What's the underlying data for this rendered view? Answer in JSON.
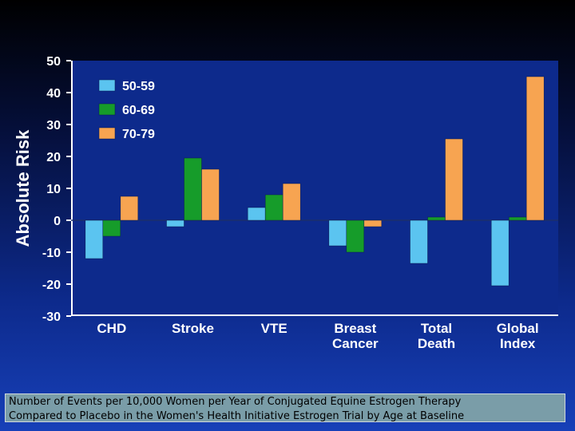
{
  "chart_data": {
    "type": "bar",
    "categories": [
      "CHD",
      "Stroke",
      "VTE",
      "Breast\nCancer",
      "Total\nDeath",
      "Global\nIndex"
    ],
    "series": [
      {
        "name": "50-59",
        "color": "#5bc4f0",
        "values": [
          -12,
          -2,
          4,
          -8,
          -13.5,
          -20.5
        ]
      },
      {
        "name": "60-69",
        "color": "#169c2a",
        "values": [
          -5,
          19.5,
          8,
          -10,
          1,
          1
        ]
      },
      {
        "name": "70-79",
        "color": "#f7a451",
        "values": [
          7.5,
          16,
          11.5,
          -2,
          25.5,
          45
        ]
      }
    ],
    "ylabel": "Absolute Risk",
    "ylim": [
      -30,
      50
    ],
    "yticks": [
      "50",
      "40",
      "30",
      "20",
      "10",
      "0",
      "-10",
      "-20",
      "-30"
    ],
    "grid": false,
    "legend": "top-left",
    "axis_color": "#ffffff",
    "background_color": "#0d2a8c"
  },
  "caption": {
    "line1": "Number of Events per 10,000 Women per Year of Conjugated Equine Estrogen Therapy",
    "line2": "Compared to Placebo in the Women's Health Initiative Estrogen Trial by Age at Baseline"
  }
}
